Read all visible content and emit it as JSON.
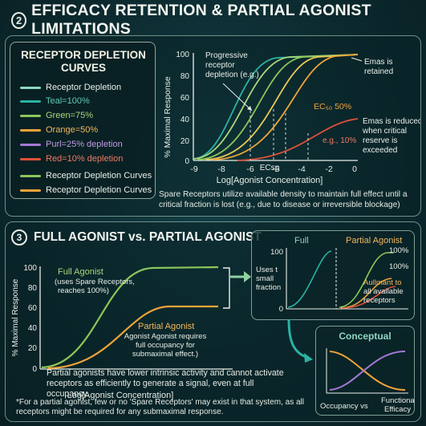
{
  "header": {
    "number": "2",
    "title": "EFFICACY RETENTION & PARTIAL AGONIST LIMITATIONS"
  },
  "legend": {
    "title_line1": "RECEPTOR DEPLETION",
    "title_line2": "CURVES",
    "items": [
      {
        "label": "Receptor Depletion",
        "color": "#8ed6c0"
      },
      {
        "label": "Teal=100%",
        "color": "#2bb3a3"
      },
      {
        "label": "Green=75%",
        "color": "#8cc65a"
      },
      {
        "label": "Orange=50%",
        "color": "#f0a43a"
      },
      {
        "label": "Purl=25% depletion",
        "color": "#a378d6"
      },
      {
        "label": "Red=10% depletion",
        "color": "#e0503a"
      },
      {
        "label": "Receptor Depletion Curves",
        "color": "#8cc65a"
      },
      {
        "label": "Receptor Depletion Curves",
        "color": "#f0a43a"
      }
    ]
  },
  "top_chart": {
    "ylabel": "% Maximal Response",
    "xlabel": "Log[Agonist Concentration]",
    "y_ticks": [
      "100",
      "80",
      "60",
      "40",
      "20",
      "0"
    ],
    "x_ticks": [
      "-9",
      "-8",
      "-6",
      "-5",
      "-4",
      "-2",
      "0"
    ],
    "annotation_progressive": [
      "Progressive",
      "receptor",
      "depletion (e.g.)"
    ],
    "annotation_emax_retained": [
      "Emas is",
      "retained"
    ],
    "annotation_ec50": "EC₅₀  50%",
    "annotation_emax_reduced": [
      "Emas is reduced",
      "when critical",
      "reserve is",
      "exceeded"
    ],
    "annotation_eg10": "e.g., 10%",
    "annotation_ecsp": "ECsp"
  },
  "top_caption": "Spare Receptors utilize available density to maintain full effect until a critical fraction is lost (e.g., due to disease or irreversible blockage)",
  "section2": {
    "number": "3",
    "title": "FULL AGONIST vs. PARTIAL AGONIST"
  },
  "bottom_chart": {
    "ylabel": "% Maximal Response",
    "xlabel": "Log[Agonist Concentration]",
    "y_ticks": [
      "100",
      "80",
      "60",
      "40",
      "20",
      "0"
    ],
    "full_label": "Full Agonist",
    "full_sub": [
      "(uses Spare Receptors,",
      "reaches 100%)"
    ],
    "partial_label": "Partial Agonist",
    "partial_sub": [
      "Agonist Agonist requires",
      "full occupancy for",
      "submaximal effect.)"
    ]
  },
  "bottom_caption": "Partial agonists have lower intrinsic activity and cannot activate receptors as efficiently to generate a signal, even at full occupancy.",
  "footnote": "*For a partial agonist, few or no 'Spare Receptors' may exist in that system, as all receptors might be required for any submaximal response.",
  "inset": {
    "full_title": "Full",
    "partial_title": "Partial Agonist",
    "uses_label": [
      "Uses t",
      "small",
      "fraction"
    ],
    "pct_100_a": "100%",
    "pct_100_b": "100%",
    "y100": "100",
    "y0": "0",
    "aullmant": [
      "Aullmant to",
      "all available",
      "receptors"
    ]
  },
  "conceptual": {
    "title": "Conceptual",
    "bottom_left": "Occupancy vs",
    "bottom_right": [
      "Functional",
      "Efficacy"
    ]
  },
  "colors": {
    "teal": "#2bb3a3",
    "green": "#8cc65a",
    "orange": "#f0a43a",
    "red": "#e0503a",
    "purple": "#a378d6",
    "accent_title": "#8fd2a0"
  }
}
